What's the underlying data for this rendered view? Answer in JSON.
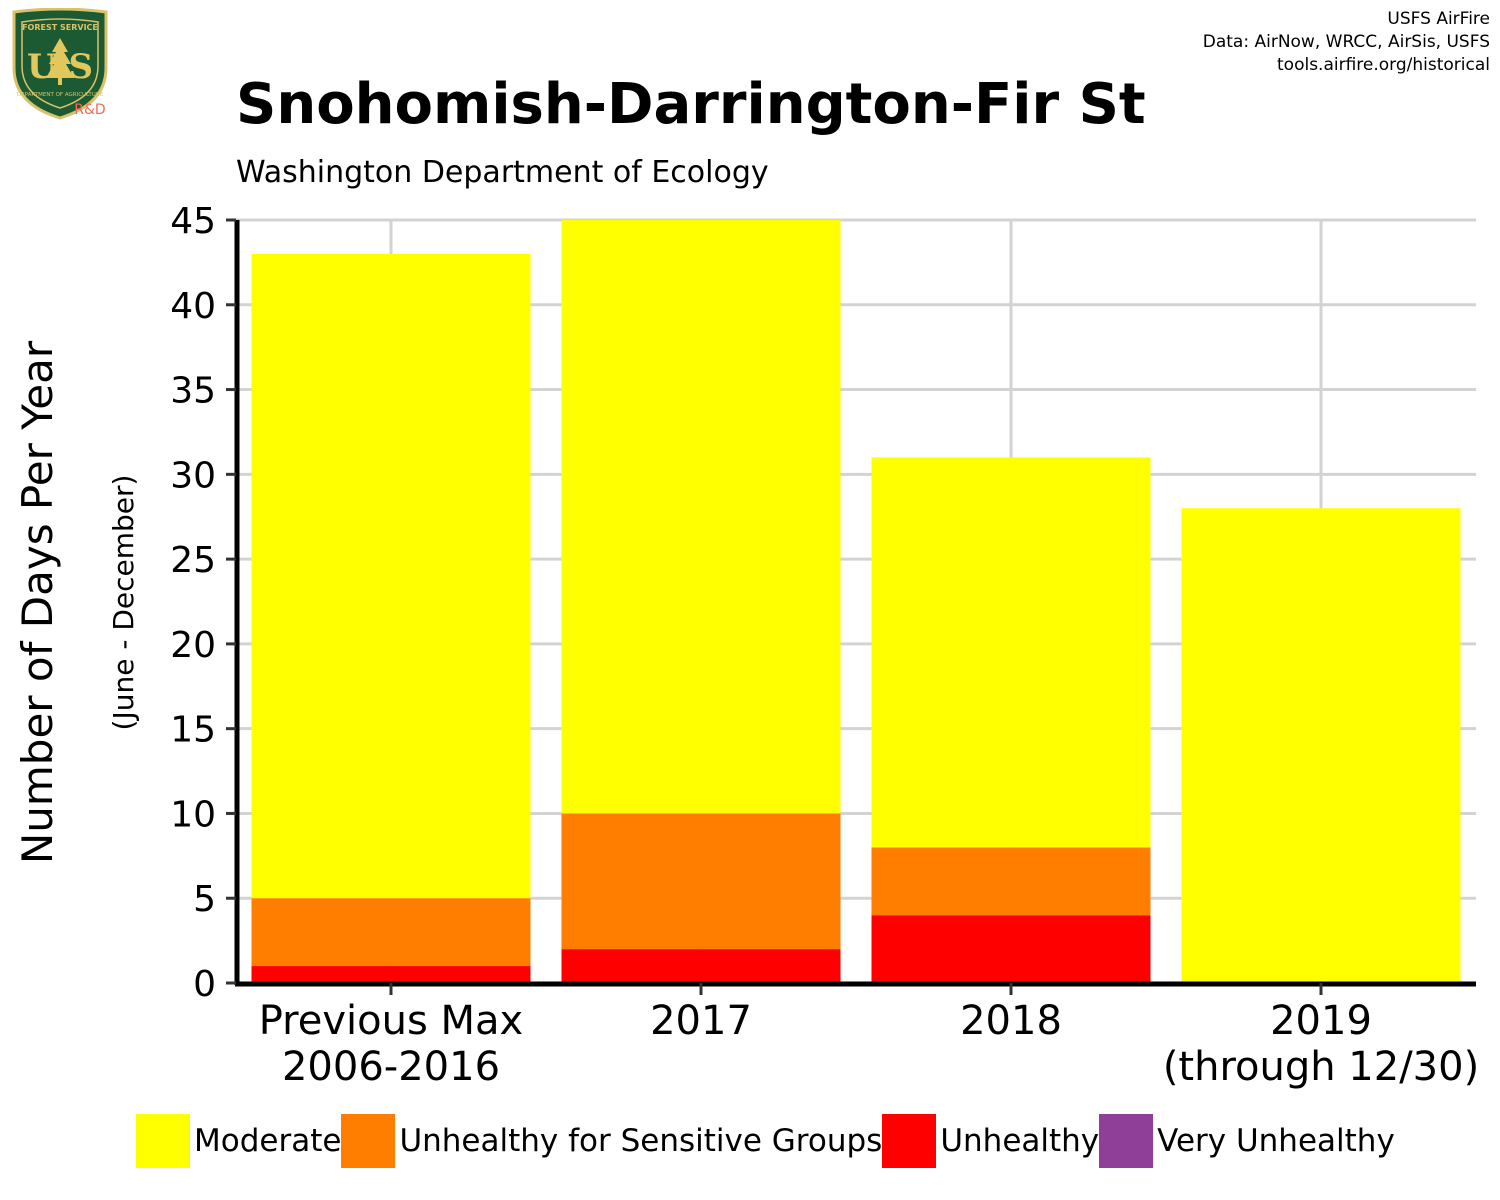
{
  "logo": {
    "top_text": "FOREST SERVICE",
    "letters": "U S",
    "bottom_text": "DEPARTMENT OF AGRICULTURE",
    "badge": "R&D"
  },
  "credits": {
    "line1": "USFS AirFire",
    "line2": "Data: AirNow, WRCC, AirSis, USFS",
    "line3": "tools.airfire.org/historical"
  },
  "chart_data": {
    "type": "bar",
    "stacked": true,
    "title": "Snohomish-Darrington-Fir St",
    "subtitle": "Washington Department of Ecology",
    "ylabel": "Number of Days Per Year",
    "ylabel_sub": "(June - December)",
    "xlabel": "",
    "ylim": [
      0,
      45
    ],
    "yticks": [
      0,
      5,
      10,
      15,
      20,
      25,
      30,
      35,
      40,
      45
    ],
    "grid": true,
    "legend_position": "bottom",
    "categories": [
      [
        "Previous Max",
        "2006-2016"
      ],
      [
        "2017"
      ],
      [
        "2018"
      ],
      [
        "2019",
        "(through 12/30)"
      ]
    ],
    "series": [
      {
        "name": "Unhealthy",
        "color": "#FF0000",
        "values": [
          1,
          2,
          4,
          0
        ]
      },
      {
        "name": "Unhealthy for Sensitive Groups",
        "color": "#FF7E00",
        "values": [
          4,
          8,
          4,
          0
        ]
      },
      {
        "name": "Moderate",
        "color": "#FFFF00",
        "values": [
          38,
          35,
          23,
          28
        ]
      },
      {
        "name": "Very Unhealthy",
        "color": "#8F3F97",
        "values": [
          0,
          0,
          0,
          0
        ]
      }
    ],
    "legend": [
      {
        "label": "Moderate",
        "color": "#FFFF00"
      },
      {
        "label": "Unhealthy for Sensitive Groups",
        "color": "#FF7E00"
      },
      {
        "label": "Unhealthy",
        "color": "#FF0000"
      },
      {
        "label": "Very Unhealthy",
        "color": "#8F3F97"
      }
    ]
  }
}
